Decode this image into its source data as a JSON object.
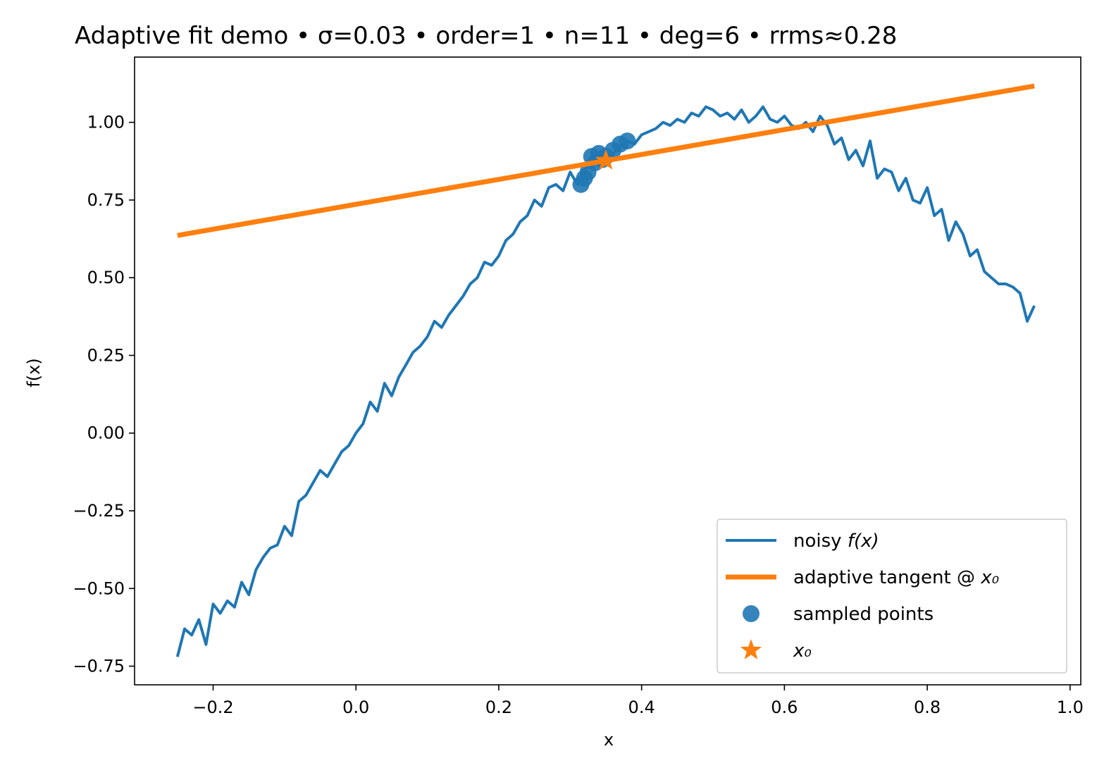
{
  "chart_data": {
    "type": "line",
    "title": "Adaptive fit demo  •  σ=0.03  •  order=1  •  n=11  •  deg=6  •  rrms≈0.28",
    "xlabel": "x",
    "ylabel": "f(x)",
    "xlim": [
      -0.31,
      1.015
    ],
    "ylim": [
      -0.81,
      1.21
    ],
    "x_ticks": [
      -0.2,
      0.0,
      0.2,
      0.4,
      0.6,
      0.8,
      1.0
    ],
    "x_tick_labels": [
      "−0.2",
      "0.0",
      "0.2",
      "0.4",
      "0.6",
      "0.8",
      "1.0"
    ],
    "y_ticks": [
      -0.75,
      -0.5,
      -0.25,
      0.0,
      0.25,
      0.5,
      0.75,
      1.0
    ],
    "y_tick_labels": [
      "−0.75",
      "−0.50",
      "−0.25",
      "0.00",
      "0.25",
      "0.50",
      "0.75",
      "1.00"
    ],
    "grid": false,
    "legend_position": "lower-right",
    "colors": {
      "noisy": "#1f77b4",
      "tangent": "#ff7f0e",
      "points": "#1f77b4",
      "x0": "#ff7f0e"
    },
    "series": [
      {
        "name": "noisy f(x)",
        "type": "line",
        "x": [
          -0.25,
          -0.24,
          -0.23,
          -0.22,
          -0.21,
          -0.2,
          -0.19,
          -0.18,
          -0.17,
          -0.16,
          -0.15,
          -0.14,
          -0.13,
          -0.12,
          -0.11,
          -0.1,
          -0.09,
          -0.08,
          -0.07,
          -0.06,
          -0.05,
          -0.04,
          -0.03,
          -0.02,
          -0.01,
          0.0,
          0.01,
          0.02,
          0.03,
          0.04,
          0.05,
          0.06,
          0.07,
          0.08,
          0.09,
          0.1,
          0.11,
          0.12,
          0.13,
          0.14,
          0.15,
          0.16,
          0.17,
          0.18,
          0.19,
          0.2,
          0.21,
          0.22,
          0.23,
          0.24,
          0.25,
          0.26,
          0.27,
          0.28,
          0.29,
          0.3,
          0.31,
          0.32,
          0.33,
          0.34,
          0.35,
          0.36,
          0.37,
          0.38,
          0.39,
          0.4,
          0.41,
          0.42,
          0.43,
          0.44,
          0.45,
          0.46,
          0.47,
          0.48,
          0.49,
          0.5,
          0.51,
          0.52,
          0.53,
          0.54,
          0.55,
          0.56,
          0.57,
          0.58,
          0.59,
          0.6,
          0.61,
          0.62,
          0.63,
          0.64,
          0.65,
          0.66,
          0.67,
          0.68,
          0.69,
          0.7,
          0.71,
          0.72,
          0.73,
          0.74,
          0.75,
          0.76,
          0.77,
          0.78,
          0.79,
          0.8,
          0.81,
          0.82,
          0.83,
          0.84,
          0.85,
          0.86,
          0.87,
          0.88,
          0.89,
          0.9,
          0.91,
          0.92,
          0.93,
          0.94,
          0.95
        ],
        "y": [
          -0.72,
          -0.63,
          -0.65,
          -0.6,
          -0.68,
          -0.55,
          -0.58,
          -0.54,
          -0.56,
          -0.48,
          -0.52,
          -0.44,
          -0.4,
          -0.37,
          -0.36,
          -0.3,
          -0.33,
          -0.22,
          -0.2,
          -0.16,
          -0.12,
          -0.14,
          -0.1,
          -0.06,
          -0.04,
          0.0,
          0.03,
          0.1,
          0.07,
          0.16,
          0.12,
          0.18,
          0.22,
          0.26,
          0.28,
          0.31,
          0.36,
          0.34,
          0.38,
          0.41,
          0.44,
          0.48,
          0.5,
          0.55,
          0.54,
          0.57,
          0.62,
          0.64,
          0.68,
          0.7,
          0.75,
          0.73,
          0.79,
          0.8,
          0.78,
          0.84,
          0.8,
          0.85,
          0.86,
          0.88,
          0.87,
          0.9,
          0.92,
          0.94,
          0.93,
          0.96,
          0.97,
          0.98,
          1.0,
          0.99,
          1.01,
          1.0,
          1.03,
          1.02,
          1.05,
          1.04,
          1.02,
          1.03,
          1.01,
          1.04,
          1.0,
          1.02,
          1.05,
          1.01,
          1.0,
          1.02,
          0.99,
          0.98,
          1.0,
          0.97,
          1.02,
          0.99,
          0.93,
          0.95,
          0.88,
          0.91,
          0.86,
          0.94,
          0.82,
          0.85,
          0.84,
          0.78,
          0.82,
          0.75,
          0.74,
          0.79,
          0.7,
          0.72,
          0.62,
          0.68,
          0.64,
          0.57,
          0.59,
          0.52,
          0.5,
          0.48,
          0.48,
          0.47,
          0.45,
          0.36,
          0.41
        ]
      },
      {
        "name": "adaptive tangent @ x₀",
        "type": "line",
        "x": [
          -0.25,
          0.95
        ],
        "y": [
          0.636,
          1.117
        ]
      },
      {
        "name": "sampled points",
        "type": "scatter",
        "x": [
          0.315,
          0.32,
          0.325,
          0.33,
          0.335,
          0.34,
          0.345,
          0.35,
          0.36,
          0.37,
          0.38
        ],
        "y": [
          0.8,
          0.82,
          0.84,
          0.89,
          0.87,
          0.9,
          0.88,
          0.89,
          0.91,
          0.93,
          0.94
        ]
      },
      {
        "name": "x₀",
        "type": "marker",
        "x": [
          0.35
        ],
        "y": [
          0.877
        ]
      }
    ],
    "legend": [
      {
        "label": "noisy ",
        "label_math": "f(x)",
        "kind": "line",
        "color": "#1f77b4"
      },
      {
        "label": "adaptive tangent @ ",
        "label_math": "x₀",
        "kind": "line-thick",
        "color": "#ff7f0e"
      },
      {
        "label": "sampled points",
        "label_math": "",
        "kind": "dot",
        "color": "#1f77b4"
      },
      {
        "label": "",
        "label_math": "x₀",
        "kind": "star",
        "color": "#ff7f0e"
      }
    ]
  }
}
